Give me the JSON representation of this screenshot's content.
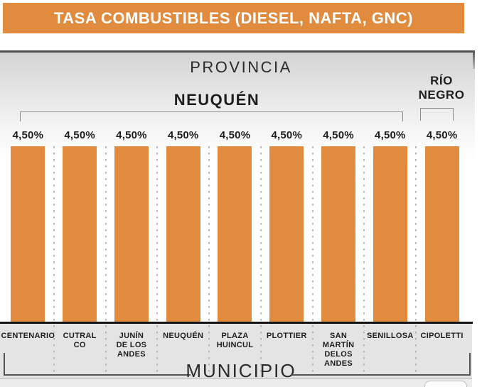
{
  "header": {
    "title": "TASA COMBUSTIBLES (DIESEL, NAFTA, GNC)"
  },
  "axis": {
    "group_axis_label": "PROVINCIA",
    "category_axis_label": "MUNICIPIO"
  },
  "colors": {
    "banner_bg": "#E08B3D",
    "bar": "#E08B3D",
    "band_bg": "#e4e4e4",
    "baseline": "#141414",
    "dotted_separator": "#b6b6b6"
  },
  "chart_data": {
    "type": "bar",
    "title": "TASA COMBUSTIBLES (DIESEL, NAFTA, GNC)",
    "group_axis_label": "PROVINCIA",
    "xlabel": "MUNICIPIO",
    "ylabel": "",
    "unit": "%",
    "grid": false,
    "legend": false,
    "ylim": [
      0,
      4.5
    ],
    "categories": [
      "CENTENARIO",
      "CUTRAL CO",
      "JUNÍN DE LOS ANDES",
      "NEUQUÉN",
      "PLAZA HUINCUL",
      "PLOTTIER",
      "SAN MARTÍN DELOS ANDES",
      "SENILLOSA",
      "CIPOLETTI"
    ],
    "display_categories": [
      "CENTENARIO",
      "CUTRAL\nCO",
      "JUNÍN\nDE LOS\nANDES",
      "NEUQUÉN",
      "PLAZA\nHUINCUL",
      "PLOTTIER",
      "SAN\nMARTÍN\nDELOS\nANDES",
      "SENILLOSA",
      "CIPOLETTI"
    ],
    "values": [
      4.5,
      4.5,
      4.5,
      4.5,
      4.5,
      4.5,
      4.5,
      4.5,
      4.5
    ],
    "value_labels": [
      "4,50%",
      "4,50%",
      "4,50%",
      "4,50%",
      "4,50%",
      "4,50%",
      "4,50%",
      "4,50%",
      "4,50%"
    ],
    "groups": [
      {
        "name": "NEUQUÉN",
        "display": "NEUQUÉN",
        "categories": [
          "CENTENARIO",
          "CUTRAL CO",
          "JUNÍN DE LOS ANDES",
          "NEUQUÉN",
          "PLAZA HUINCUL",
          "PLOTTIER",
          "SAN MARTÍN DELOS ANDES",
          "SENILLOSA"
        ]
      },
      {
        "name": "RÍO NEGRO",
        "display": "RÍO\nNEGRO",
        "categories": [
          "CIPOLETTI"
        ]
      }
    ]
  }
}
